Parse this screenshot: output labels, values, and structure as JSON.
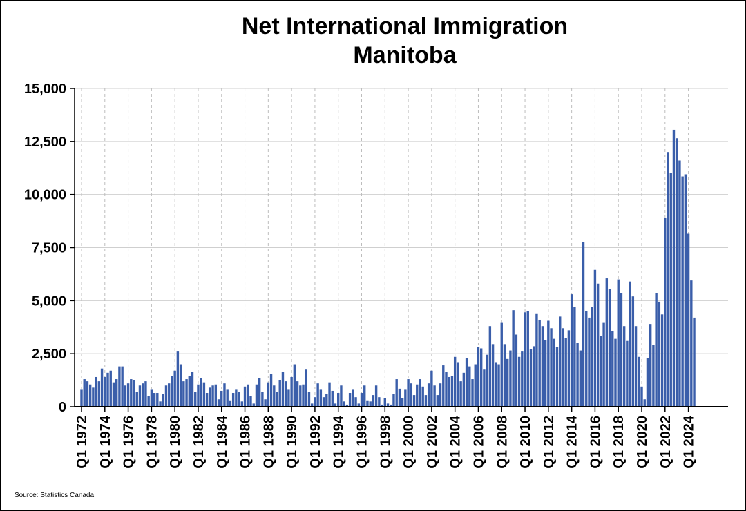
{
  "chart_data": {
    "type": "bar",
    "title_lines": [
      "Net International Immigration",
      "Manitoba"
    ],
    "xlabel": "",
    "ylabel": "",
    "ylim": [
      0,
      15000
    ],
    "yticks": [
      0,
      2500,
      5000,
      7500,
      10000,
      12500,
      15000
    ],
    "ytick_labels": [
      "0",
      "2,500",
      "5,000",
      "7,500",
      "10,000",
      "12,500",
      "15,000"
    ],
    "xtick_labels": [
      "Q1 1972",
      "Q1 1974",
      "Q1 1976",
      "Q1 1978",
      "Q1 1980",
      "Q1 1982",
      "Q1 1984",
      "Q1 1986",
      "Q1 1988",
      "Q1 1990",
      "Q1 1992",
      "Q1 1994",
      "Q1 1996",
      "Q1 1998",
      "Q1 2000",
      "Q1 2002",
      "Q1 2004",
      "Q1 2006",
      "Q1 2008",
      "Q1 2010",
      "Q1 2012",
      "Q1 2014",
      "Q1 2016",
      "Q1 2018",
      "Q1 2020",
      "Q1 2022",
      "Q1 2024"
    ],
    "first_period": "Q1 1972",
    "grid_y": true,
    "grid_x": true,
    "bar_color": "#3a5eaa",
    "values": [
      800,
      1300,
      1200,
      1050,
      900,
      1400,
      1200,
      1800,
      1400,
      1600,
      1700,
      1150,
      1300,
      1900,
      1900,
      1000,
      1100,
      1300,
      1250,
      700,
      1000,
      1100,
      1200,
      500,
      800,
      650,
      650,
      250,
      600,
      1000,
      1100,
      1450,
      1700,
      2600,
      2000,
      1200,
      1300,
      1450,
      1650,
      700,
      1050,
      1350,
      1150,
      650,
      900,
      1000,
      1050,
      350,
      750,
      1100,
      800,
      300,
      650,
      800,
      700,
      250,
      950,
      1050,
      500,
      150,
      1050,
      1350,
      700,
      350,
      1150,
      1550,
      1000,
      700,
      1250,
      1650,
      1200,
      800,
      1400,
      2000,
      1200,
      1000,
      1050,
      1750,
      700,
      150,
      450,
      1100,
      800,
      450,
      600,
      1150,
      750,
      150,
      650,
      1000,
      250,
      100,
      650,
      800,
      450,
      150,
      650,
      1000,
      300,
      250,
      550,
      1000,
      450,
      100,
      400,
      150,
      100,
      600,
      1300,
      850,
      400,
      800,
      1300,
      1100,
      550,
      1050,
      1300,
      950,
      550,
      1100,
      1700,
      1000,
      550,
      1100,
      1950,
      1650,
      1400,
      1450,
      2350,
      2100,
      1200,
      1600,
      2300,
      1900,
      1300,
      2000,
      2800,
      2750,
      1750,
      2450,
      3800,
      2950,
      2100,
      2000,
      3950,
      2950,
      2250,
      2650,
      4550,
      3400,
      2350,
      2600,
      4450,
      4500,
      2700,
      2850,
      4400,
      4100,
      3800,
      3150,
      4050,
      3700,
      3200,
      2800,
      4250,
      3700,
      3250,
      3600,
      5300,
      4700,
      3000,
      2650,
      7750,
      4500,
      4200,
      4700,
      6450,
      5800,
      3350,
      3950,
      6050,
      5550,
      3550,
      3200,
      6000,
      5350,
      3800,
      3100,
      5900,
      5200,
      3800,
      2350,
      950,
      350,
      2300,
      3900,
      2900,
      5350,
      4950,
      4350,
      8900,
      12000,
      11000,
      13050,
      12650,
      11600,
      10850,
      10950,
      8150,
      5950,
      4200
    ]
  },
  "source_note": "Source: Statistics Canada"
}
